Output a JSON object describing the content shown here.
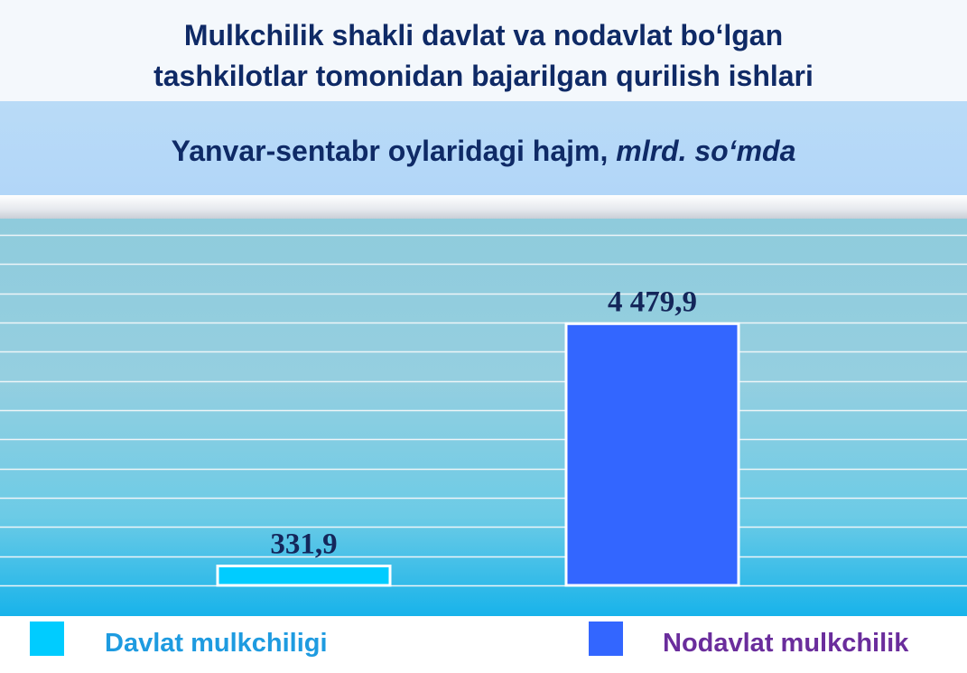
{
  "title_lines": [
    "Mulkchilik shakli davlat va nodavlat bo‘lgan",
    "tashkilotlar tomonidan bajarilgan qurilish ishlari"
  ],
  "subtitle": {
    "main": "Yanvar-sentabr oylaridagi hajm, ",
    "unit": "mlrd. so‘mda"
  },
  "chart_data": {
    "type": "bar",
    "categories": [
      "Davlat mulkchiligi",
      "Nodavlat mulkchilik"
    ],
    "values": [
      331.9,
      4479.9
    ],
    "value_labels": [
      "331,9",
      "4 479,9"
    ],
    "colors": [
      "#00ccff",
      "#3366ff"
    ],
    "label_colors": [
      "#1e9be0",
      "#6a2d9c"
    ],
    "ylim": [
      0,
      6000
    ],
    "grid": true,
    "legend": "bottom"
  }
}
